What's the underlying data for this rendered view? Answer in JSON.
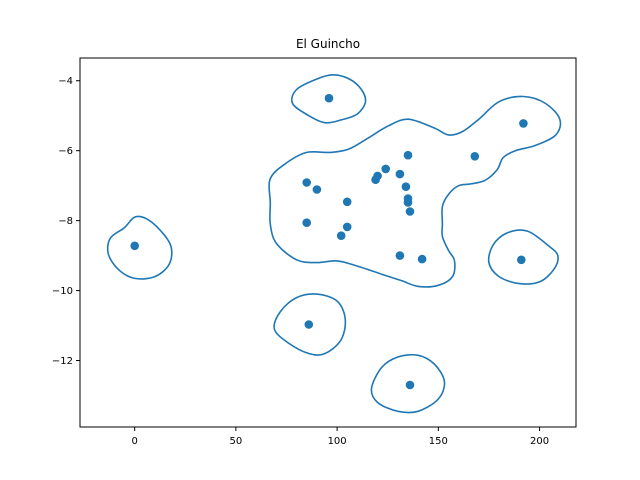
{
  "chart_data": {
    "type": "scatter",
    "title": "El Guincho",
    "xlabel": "",
    "ylabel": "",
    "xlim": [
      -27,
      218
    ],
    "ylim": [
      -13.9,
      -3.35
    ],
    "x_ticks": [
      0,
      50,
      100,
      150,
      200
    ],
    "y_ticks": [
      -12,
      -10,
      -8,
      -6,
      -4
    ],
    "grid": false,
    "color": "#1f77b4",
    "points": [
      {
        "x": 0,
        "y": -8.72
      },
      {
        "x": 96,
        "y": -4.5
      },
      {
        "x": 86,
        "y": -10.97
      },
      {
        "x": 136,
        "y": -12.7
      },
      {
        "x": 192,
        "y": -5.22
      },
      {
        "x": 191,
        "y": -9.12
      },
      {
        "x": 168,
        "y": -6.16
      },
      {
        "x": 85,
        "y": -6.91
      },
      {
        "x": 90,
        "y": -7.11
      },
      {
        "x": 85,
        "y": -8.06
      },
      {
        "x": 105,
        "y": -7.46
      },
      {
        "x": 105,
        "y": -8.18
      },
      {
        "x": 102,
        "y": -8.43
      },
      {
        "x": 119,
        "y": -6.83
      },
      {
        "x": 120,
        "y": -6.72
      },
      {
        "x": 124,
        "y": -6.52
      },
      {
        "x": 131,
        "y": -6.67
      },
      {
        "x": 135,
        "y": -6.13
      },
      {
        "x": 134,
        "y": -7.03
      },
      {
        "x": 135,
        "y": -7.37
      },
      {
        "x": 135,
        "y": -7.48
      },
      {
        "x": 136,
        "y": -7.74
      },
      {
        "x": 131,
        "y": -9.0
      },
      {
        "x": 142,
        "y": -9.1
      }
    ],
    "contours": [
      [
        [
          -5,
          -8.2
        ],
        [
          0,
          -7.9
        ],
        [
          6,
          -7.95
        ],
        [
          13,
          -8.3
        ],
        [
          18,
          -8.75
        ],
        [
          17,
          -9.25
        ],
        [
          10,
          -9.6
        ],
        [
          0,
          -9.65
        ],
        [
          -8,
          -9.4
        ],
        [
          -13,
          -8.95
        ],
        [
          -12,
          -8.5
        ],
        [
          -5,
          -8.2
        ]
      ],
      [
        [
          90,
          -3.95
        ],
        [
          98,
          -3.83
        ],
        [
          106,
          -3.95
        ],
        [
          112,
          -4.25
        ],
        [
          114,
          -4.6
        ],
        [
          110,
          -4.95
        ],
        [
          102,
          -5.12
        ],
        [
          94,
          -5.2
        ],
        [
          86,
          -5.0
        ],
        [
          78,
          -4.65
        ],
        [
          80,
          -4.25
        ],
        [
          90,
          -3.95
        ]
      ],
      [
        [
          80,
          -10.2
        ],
        [
          90,
          -10.1
        ],
        [
          100,
          -10.3
        ],
        [
          104,
          -10.8
        ],
        [
          102,
          -11.4
        ],
        [
          94,
          -11.8
        ],
        [
          86,
          -11.8
        ],
        [
          76,
          -11.5
        ],
        [
          69,
          -11.1
        ],
        [
          72,
          -10.6
        ],
        [
          80,
          -10.2
        ]
      ],
      [
        [
          130,
          -11.9
        ],
        [
          140,
          -11.85
        ],
        [
          148,
          -12.1
        ],
        [
          153,
          -12.6
        ],
        [
          150,
          -13.1
        ],
        [
          140,
          -13.45
        ],
        [
          130,
          -13.45
        ],
        [
          120,
          -13.2
        ],
        [
          117,
          -12.8
        ],
        [
          122,
          -12.2
        ],
        [
          130,
          -11.9
        ]
      ],
      [
        [
          184,
          -8.35
        ],
        [
          194,
          -8.3
        ],
        [
          204,
          -8.7
        ],
        [
          209,
          -9.0
        ],
        [
          207,
          -9.4
        ],
        [
          200,
          -9.75
        ],
        [
          190,
          -9.8
        ],
        [
          180,
          -9.6
        ],
        [
          175,
          -9.2
        ],
        [
          177,
          -8.7
        ],
        [
          184,
          -8.35
        ]
      ],
      [
        [
          67,
          -6.8
        ],
        [
          75,
          -6.35
        ],
        [
          85,
          -6.05
        ],
        [
          97,
          -6.05
        ],
        [
          106,
          -5.95
        ],
        [
          115,
          -5.65
        ],
        [
          125,
          -5.3
        ],
        [
          135,
          -5.1
        ],
        [
          148,
          -5.35
        ],
        [
          155,
          -5.55
        ],
        [
          162,
          -5.45
        ],
        [
          170,
          -5.1
        ],
        [
          180,
          -4.6
        ],
        [
          192,
          -4.45
        ],
        [
          203,
          -4.65
        ],
        [
          210,
          -5.1
        ],
        [
          208,
          -5.55
        ],
        [
          198,
          -5.85
        ],
        [
          188,
          -6.0
        ],
        [
          182,
          -6.2
        ],
        [
          179,
          -6.55
        ],
        [
          173,
          -6.85
        ],
        [
          166,
          -6.95
        ],
        [
          160,
          -7.0
        ],
        [
          155,
          -7.25
        ],
        [
          152,
          -7.6
        ],
        [
          152,
          -8.1
        ],
        [
          152,
          -8.45
        ],
        [
          155,
          -8.85
        ],
        [
          158,
          -9.15
        ],
        [
          157,
          -9.6
        ],
        [
          150,
          -9.85
        ],
        [
          140,
          -9.88
        ],
        [
          132,
          -9.72
        ],
        [
          123,
          -9.55
        ],
        [
          110,
          -9.3
        ],
        [
          100,
          -9.15
        ],
        [
          90,
          -9.2
        ],
        [
          80,
          -9.12
        ],
        [
          70,
          -8.65
        ],
        [
          67,
          -8.1
        ],
        [
          67,
          -7.5
        ],
        [
          67,
          -6.8
        ]
      ]
    ]
  }
}
